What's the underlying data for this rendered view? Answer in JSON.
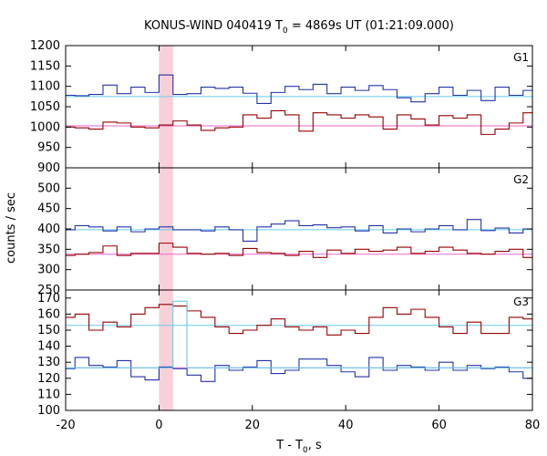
{
  "chart_data": {
    "type": "line",
    "title_main": "KONUS-WIND 040419 T",
    "title_sub": "0",
    "title_rest": " = 4869s UT (01:21:09.000)",
    "xlabel_main": "T - T",
    "xlabel_sub": "0",
    "xlabel_rest": ", s",
    "ylabel": "counts / sec",
    "xlim": [
      -20,
      80
    ],
    "x_ticks": [
      "-20",
      "0",
      "20",
      "40",
      "60",
      "80"
    ],
    "x_tick_values": [
      -20,
      0,
      20,
      40,
      60,
      80
    ],
    "highlight_band": [
      0,
      3
    ],
    "grid": false,
    "bin_edges": [
      -21,
      -18,
      -15,
      -12,
      -9,
      -6,
      -3,
      0,
      3,
      6,
      9,
      12,
      15,
      18,
      21,
      24,
      27,
      30,
      33,
      36,
      39,
      42,
      45,
      48,
      51,
      54,
      57,
      60,
      63,
      66,
      69,
      72,
      75,
      78,
      81
    ],
    "panels": [
      {
        "label": "G1",
        "ylim": [
          900,
          1200
        ],
        "y_ticks": [
          900,
          950,
          1000,
          1050,
          1100,
          1150,
          1200
        ],
        "background_levels": [
          1075,
          1003
        ],
        "series": [
          {
            "color": "#2233aa",
            "values": [
              1078,
              1077,
              1080,
              1103,
              1082,
              1098,
              1085,
              1128,
              1080,
              1082,
              1098,
              1095,
              1098,
              1083,
              1058,
              1085,
              1100,
              1092,
              1105,
              1082,
              1098,
              1090,
              1102,
              1092,
              1072,
              1062,
              1082,
              1098,
              1078,
              1090,
              1065,
              1098,
              1078,
              1090
            ]
          },
          {
            "color": "#990000",
            "values": [
              1000,
              998,
              995,
              1012,
              1010,
              1000,
              998,
              1005,
              1015,
              1005,
              992,
              998,
              1000,
              1030,
              1022,
              1040,
              1030,
              990,
              1035,
              1030,
              1022,
              1030,
              1025,
              995,
              1030,
              1020,
              1005,
              1028,
              1022,
              1030,
              982,
              995,
              1010,
              1035
            ]
          }
        ]
      },
      {
        "label": "G2",
        "ylim": [
          250,
          550
        ],
        "y_ticks": [
          250,
          300,
          350,
          400,
          450,
          500
        ],
        "background_levels": [
          398,
          338
        ],
        "series": [
          {
            "color": "#2233aa",
            "values": [
              398,
              408,
              405,
              395,
              405,
              393,
              400,
              405,
              398,
              398,
              395,
              405,
              398,
              370,
              405,
              412,
              420,
              408,
              410,
              403,
              405,
              395,
              408,
              390,
              400,
              393,
              400,
              408,
              398,
              423,
              396,
              402,
              390,
              400
            ]
          },
          {
            "color": "#990000",
            "values": [
              335,
              338,
              342,
              358,
              335,
              340,
              340,
              365,
              355,
              340,
              338,
              340,
              335,
              352,
              342,
              340,
              335,
              345,
              330,
              348,
              340,
              350,
              345,
              348,
              355,
              340,
              345,
              355,
              348,
              340,
              338,
              345,
              350,
              330
            ]
          }
        ]
      },
      {
        "label": "G3",
        "ylim": [
          100,
          175
        ],
        "y_ticks": [
          100,
          110,
          120,
          130,
          140,
          150,
          160,
          170
        ],
        "background_levels": [
          153,
          126.5
        ],
        "series": [
          {
            "color": "#990000",
            "values": [
              158,
              160,
              150,
              155,
              152,
              160,
              164,
              166,
              165,
              162,
              158,
              152,
              148,
              150,
              153,
              157,
              152,
              150,
              152,
              147,
              150,
              148,
              158,
              164,
              160,
              163,
              158,
              152,
              148,
              155,
              148,
              148,
              158,
              157
            ]
          },
          {
            "color": "#2233aa",
            "values": [
              126,
              133,
              128,
              127,
              131,
              121,
              119,
              127,
              126,
              122,
              118,
              128,
              125,
              127,
              131,
              123,
              125,
              132,
              132,
              128,
              124,
              121,
              133,
              125,
              128,
              127,
              125,
              130,
              125,
              128,
              126,
              127,
              124,
              120
            ]
          },
          {
            "color": "#66ccee",
            "values": [
              126.5,
              126.5,
              126.5,
              126.5,
              126.5,
              126.5,
              126.5,
              126.5,
              168,
              126.5,
              126.5,
              126.5,
              126.5,
              126.5,
              126.5,
              126.5,
              126.5,
              126.5,
              126.5,
              126.5,
              126.5,
              126.5,
              126.5,
              126.5,
              126.5,
              126.5,
              126.5,
              126.5,
              126.5,
              126.5,
              126.5,
              126.5,
              126.5,
              126.5
            ]
          }
        ]
      }
    ]
  },
  "colors": {
    "source_blue": "#2233aa",
    "source_red": "#990000",
    "bg_line_cyan": "#66ccee",
    "bg_line_magenta": "#ee66cc",
    "highlight": "#f8d0d8"
  }
}
